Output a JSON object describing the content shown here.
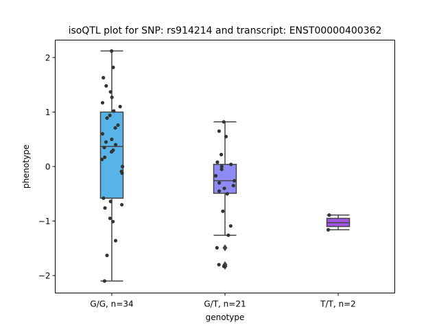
{
  "chart_data": {
    "type": "box",
    "title": "isoQTL plot for SNP: rs914214 and transcript: ENST00000400362",
    "xlabel": "genotype",
    "ylabel": "phenotype",
    "ylim": [
      -2.32,
      2.32
    ],
    "yticks": [
      2,
      1,
      0,
      -1,
      -2
    ],
    "ytick_labels": [
      "2",
      "1",
      "0",
      "−1",
      "−2"
    ],
    "grid": false,
    "legend": "none",
    "categories": [
      "G/G, n=34",
      "G/T, n=21",
      "T/T, n=2"
    ],
    "boxes": [
      {
        "category": "G/G, n=34",
        "color": "#56b4e9",
        "whisker_low": -2.1,
        "q1": -0.58,
        "median": 0.37,
        "q3": 1.0,
        "whisker_high": 2.12,
        "outliers": []
      },
      {
        "category": "G/T, n=21",
        "color": "#8e8cf4",
        "whisker_low": -1.26,
        "q1": -0.49,
        "median": -0.26,
        "q3": 0.04,
        "whisker_high": 0.82,
        "outliers": [
          -1.49,
          -1.8,
          -1.83
        ]
      },
      {
        "category": "T/T, n=2",
        "color": "#a155e0",
        "whisker_low": -1.16,
        "q1": -1.1,
        "median": -1.03,
        "q3": -0.95,
        "whisker_high": -0.89,
        "outliers": []
      }
    ],
    "points": [
      {
        "category": "G/G, n=34",
        "y": [
          2.12,
          1.82,
          1.63,
          1.48,
          1.37,
          1.27,
          1.17,
          1.1,
          1.02,
          0.94,
          0.89,
          0.76,
          0.71,
          0.6,
          0.5,
          0.45,
          0.4,
          0.35,
          0.3,
          0.27,
          0.17,
          0.13,
          -0.09,
          -0.12,
          -0.58,
          -0.64,
          -0.7,
          -0.76,
          -0.95,
          -1.01,
          -1.36,
          -1.63,
          -2.1,
          0.0
        ]
      },
      {
        "category": "G/T, n=21",
        "y": [
          0.82,
          0.65,
          0.55,
          0.22,
          0.08,
          0.04,
          0.0,
          -0.05,
          -0.17,
          -0.26,
          -0.3,
          -0.35,
          -0.4,
          -0.45,
          -0.5,
          -0.82,
          -1.09,
          -1.26,
          -1.49,
          -1.8,
          -1.83
        ]
      },
      {
        "category": "T/T, n=2",
        "y": [
          -0.89,
          -1.16
        ]
      }
    ]
  }
}
